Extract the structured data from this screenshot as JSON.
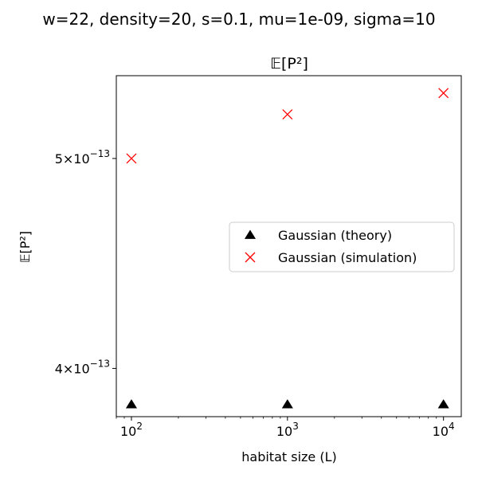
{
  "suptitle": "w=22, density=20, s=0.1, mu=1e-09, sigma=10",
  "chart_data": {
    "type": "scatter",
    "title": "𝔼[P²]",
    "xlabel": "habitat size (L)",
    "ylabel": "𝔼[P²]",
    "xscale": "log",
    "yscale": "log",
    "xlim": [
      80,
      13000
    ],
    "ylim": [
      3.8e-13,
      5.46e-13
    ],
    "x_ticks": [
      {
        "value": 100,
        "base": "10",
        "exp": "2"
      },
      {
        "value": 1000,
        "base": "10",
        "exp": "3"
      },
      {
        "value": 10000,
        "base": "10",
        "exp": "4"
      }
    ],
    "y_ticks": [
      {
        "value": 4e-13,
        "mant": "4",
        "base": "10",
        "exp": "−13"
      },
      {
        "value": 5e-13,
        "mant": "5",
        "base": "10",
        "exp": "−13"
      }
    ],
    "grid": false,
    "legend_position": "center-right",
    "series": [
      {
        "name": "Gaussian (theory)",
        "marker": "triangle",
        "color": "#000000",
        "x": [
          100,
          1000,
          10000
        ],
        "y": [
          3.85e-13,
          3.85e-13,
          3.85e-13
        ]
      },
      {
        "name": "Gaussian (simulation)",
        "marker": "x",
        "color": "#ff0000",
        "x": [
          100,
          1000,
          10000
        ],
        "y": [
          5e-13,
          5.24e-13,
          5.36e-13
        ]
      }
    ]
  }
}
